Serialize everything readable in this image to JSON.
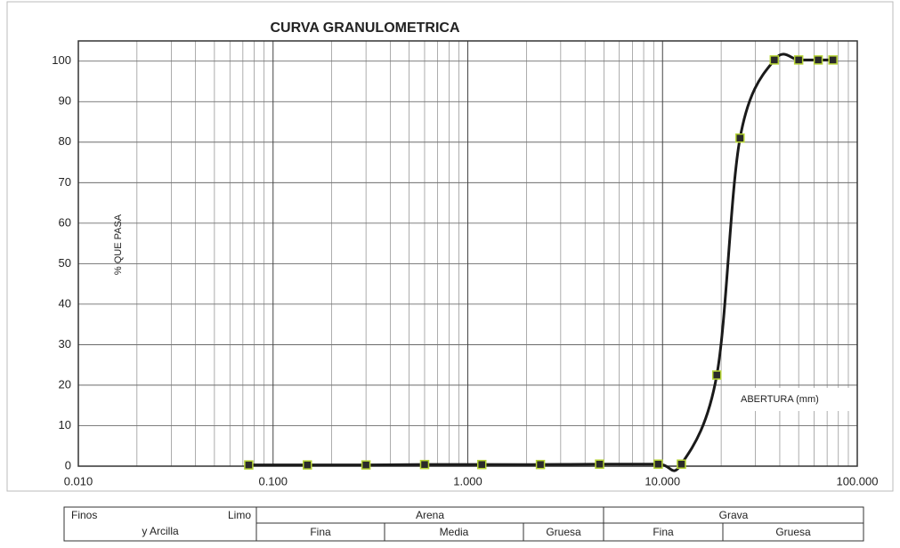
{
  "chart_data": {
    "type": "line",
    "title": "CURVA GRANULOMETRICA",
    "y_label": "% QUE PASA",
    "annotation": "ABERTURA (mm)",
    "log_x": true,
    "grid": true,
    "minor_grid": true,
    "x": [
      0.075,
      0.15,
      0.3,
      0.6,
      1.18,
      2.36,
      4.75,
      9.5,
      12.5,
      19,
      25,
      37.5,
      50,
      63,
      75
    ],
    "series": [
      {
        "color": "#1a1a1a",
        "marker_color": "#2a2a2a",
        "marker_edge": "#b5d334",
        "values": [
          0.3,
          0.3,
          0.3,
          0.4,
          0.4,
          0.4,
          0.5,
          0.5,
          0.5,
          22.5,
          81,
          100.3,
          100.3,
          100.3,
          100.3
        ]
      }
    ],
    "xlim": [
      0.01,
      100
    ],
    "xticks": [
      {
        "value": 0.01,
        "label": "0.010"
      },
      {
        "value": 0.1,
        "label": "0.100"
      },
      {
        "value": 1,
        "label": "1.000"
      },
      {
        "value": 10,
        "label": "10.000"
      },
      {
        "value": 100,
        "label": "100.000"
      }
    ],
    "ylim": [
      0,
      105
    ],
    "yticks": [
      0,
      10,
      20,
      30,
      40,
      50,
      60,
      70,
      80,
      90,
      100
    ]
  },
  "table": {
    "finos": "Finos",
    "limo": "Limo",
    "arcilla": "y Arcilla",
    "arena": "Arena",
    "grava": "Grava",
    "arena_sub": [
      "Fina",
      "Media",
      "Gruesa"
    ],
    "grava_sub": [
      "Fina",
      "Gruesa"
    ]
  }
}
